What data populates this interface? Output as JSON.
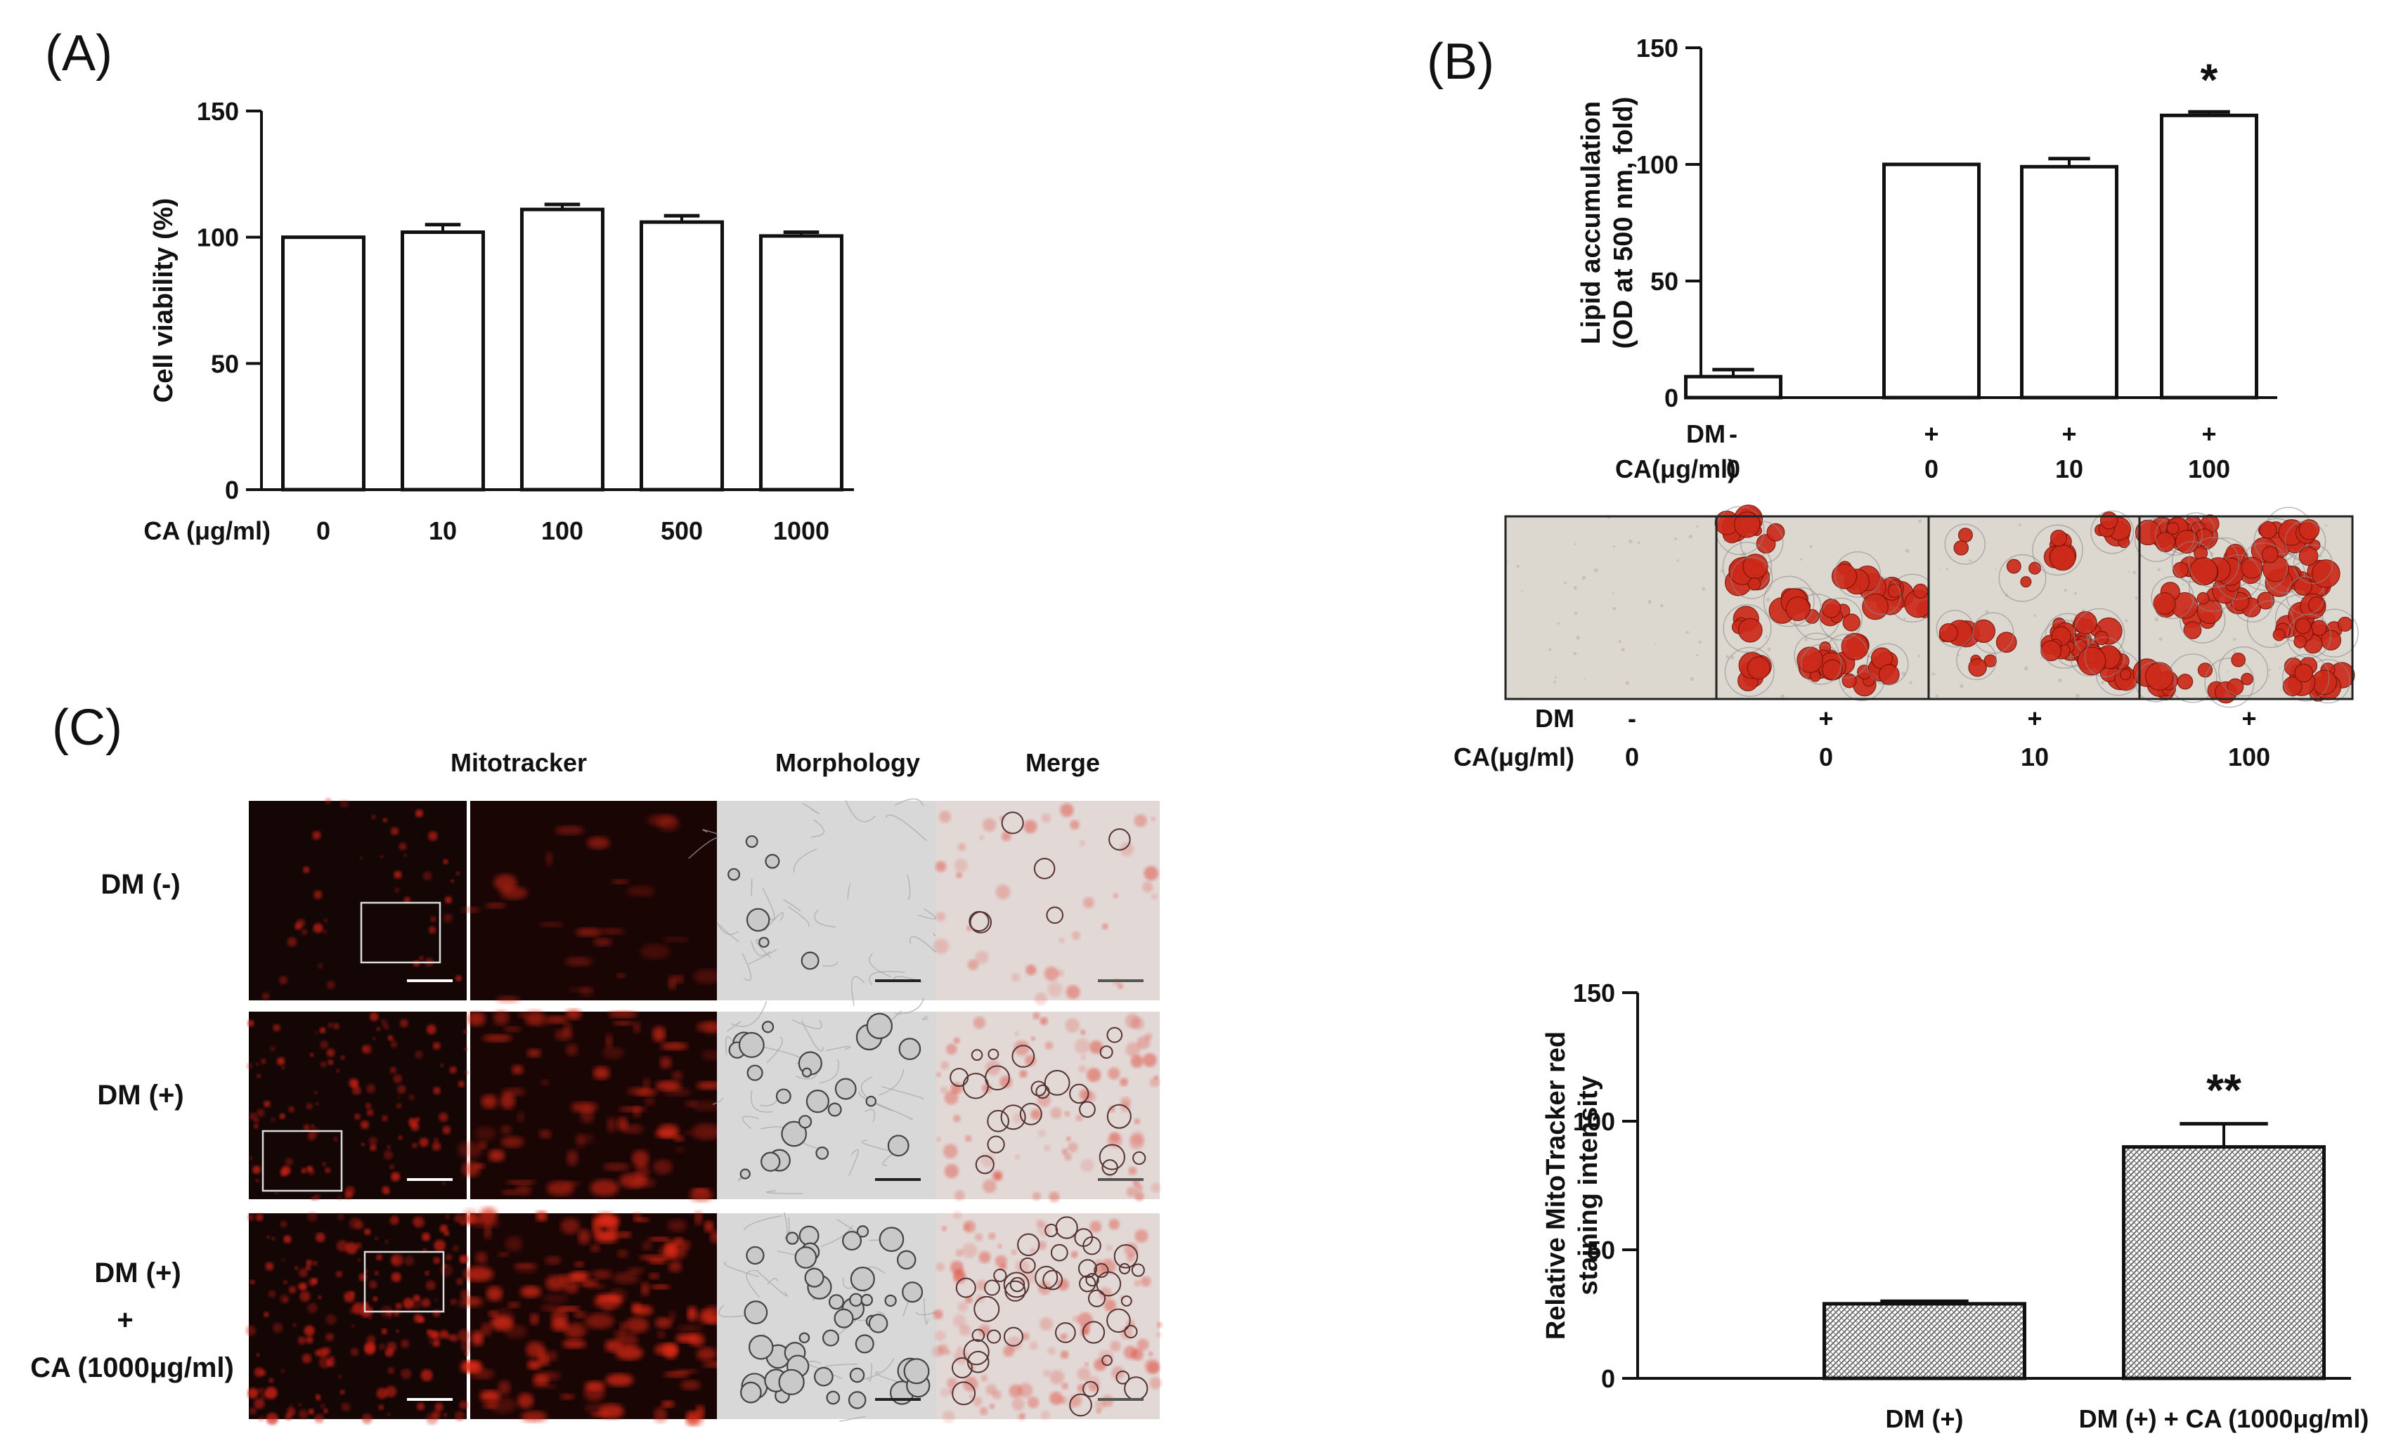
{
  "panels": {
    "a": "(A)",
    "b": "(B)",
    "c": "(C)"
  },
  "chart_data": [
    {
      "id": "A",
      "type": "bar",
      "ylabel": "Cell viability (%)",
      "xlabel": "CA (μg/ml)",
      "categories": [
        "0",
        "10",
        "100",
        "500",
        "1000"
      ],
      "values": [
        100,
        102,
        111,
        106,
        100.5
      ],
      "errors": [
        0,
        3,
        2,
        2.5,
        1.5
      ],
      "ylim": [
        0,
        150
      ],
      "yticks": [
        "0",
        "50",
        "100",
        "150"
      ]
    },
    {
      "id": "B",
      "type": "bar",
      "ylabel": "Lipid accumulation",
      "ylabel2": "(OD at 500 nm, fold)",
      "row_labels": [
        "DM",
        "CA(μg/ml)"
      ],
      "dm": [
        "-",
        "+",
        "+",
        "+"
      ],
      "ca": [
        "0",
        "0",
        "10",
        "100"
      ],
      "values": [
        9,
        100,
        99,
        121
      ],
      "errors": [
        3,
        0,
        3.5,
        1.5
      ],
      "significance": [
        "",
        "",
        "",
        "*"
      ],
      "ylim": [
        0,
        150
      ],
      "yticks": [
        "0",
        "50",
        "100",
        "150"
      ]
    },
    {
      "id": "C",
      "type": "bar",
      "ylabel": "Relative MitoTracker red",
      "ylabel2": "staining intensity",
      "categories": [
        "DM (+)",
        "DM (+) + CA (1000μg/ml)"
      ],
      "values": [
        29,
        90
      ],
      "errors": [
        1,
        9
      ],
      "significance": [
        "",
        "**"
      ],
      "ylim": [
        0,
        150
      ],
      "yticks": [
        "0",
        "50",
        "100",
        "150"
      ]
    }
  ],
  "oil_red_labels": {
    "dm_label": "DM",
    "ca_label": "CA(μg/ml)",
    "dm": [
      "-",
      "+",
      "+",
      "+"
    ],
    "ca": [
      "0",
      "0",
      "10",
      "100"
    ]
  },
  "micrographs": {
    "headers": {
      "mito": "Mitotracker",
      "morph": "Morphology",
      "merge": "Merge"
    },
    "rows": [
      "DM (-)",
      "DM (+)",
      "DM (+)",
      "+",
      "CA (1000μg/ml)"
    ]
  },
  "colors": {
    "bar_fill": "#ffffff",
    "ink": "#111111",
    "stain_red": "#cc2a1a",
    "fluor_bg": "#150606"
  }
}
